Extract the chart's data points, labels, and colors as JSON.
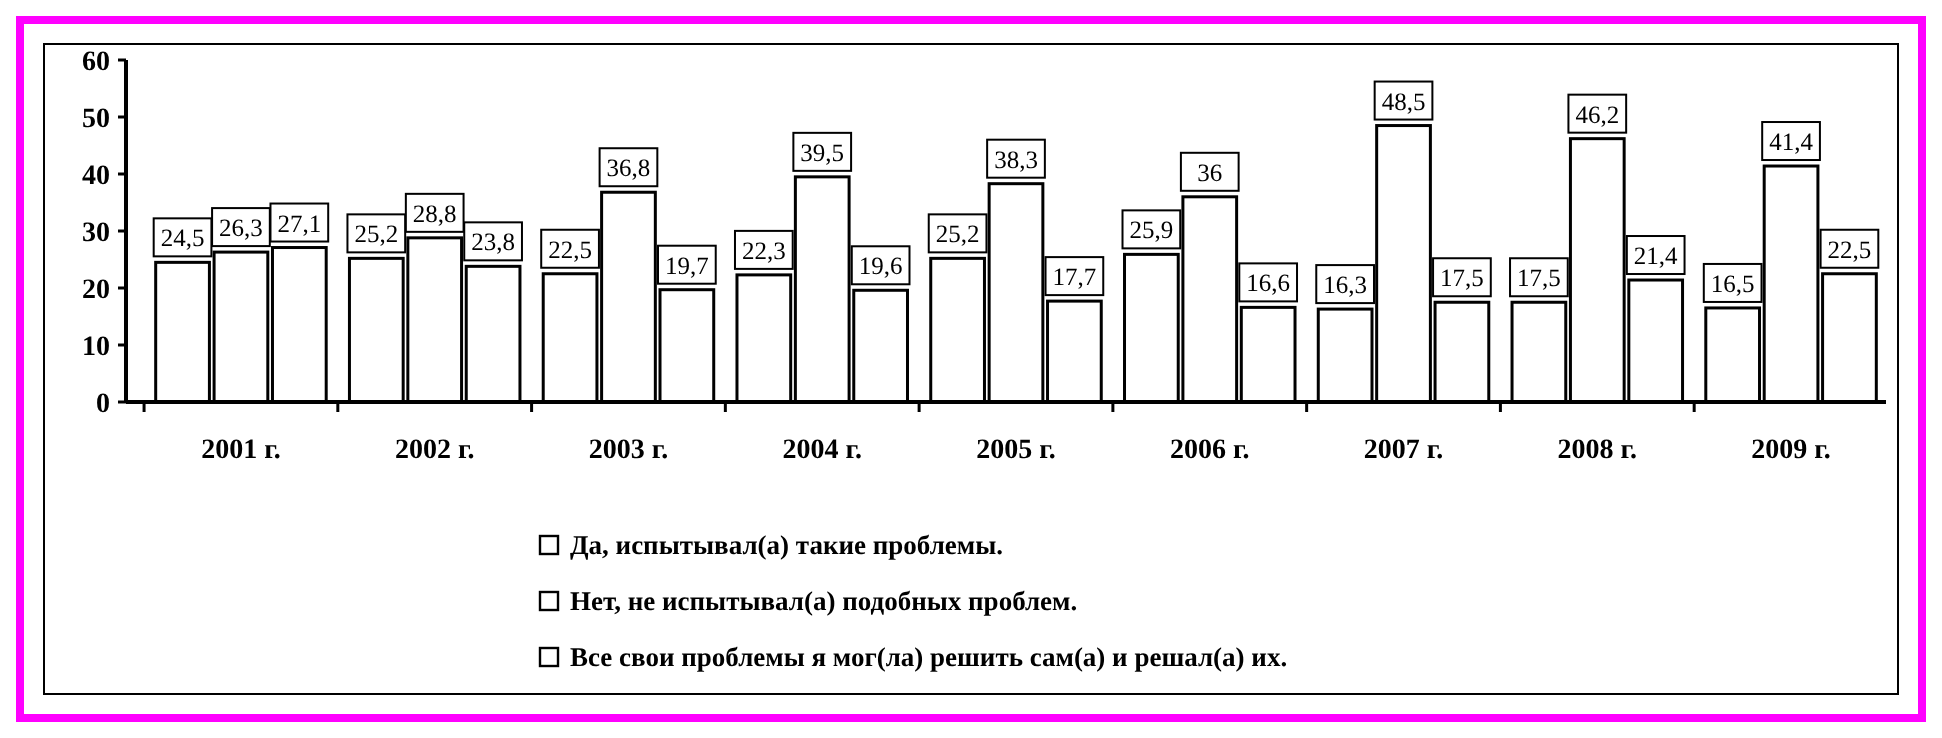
{
  "chart_data": {
    "type": "bar",
    "categories": [
      "2001 г.",
      "2002 г.",
      "2003 г.",
      "2004 г.",
      "2005 г.",
      "2006 г.",
      "2007 г.",
      "2008 г.",
      "2009 г."
    ],
    "series": [
      {
        "name": "Да, испытывал(а) такие проблемы.",
        "color": "#ffffff",
        "values": [
          24.5,
          25.2,
          22.5,
          22.3,
          25.2,
          25.9,
          16.3,
          17.5,
          16.5
        ],
        "value_labels": [
          "24,5",
          "25,2",
          "22,5",
          "22,3",
          "25,2",
          "25,9",
          "16,3",
          "17,5",
          "16,5"
        ]
      },
      {
        "name": "Нет, не испытывал(а) подобных проблем.",
        "color": "#ffffff",
        "values": [
          26.3,
          28.8,
          36.8,
          39.5,
          38.3,
          36,
          48.5,
          46.2,
          41.4
        ],
        "value_labels": [
          "26,3",
          "28,8",
          "36,8",
          "39,5",
          "38,3",
          "36",
          "48,5",
          "46,2",
          "41,4"
        ]
      },
      {
        "name": "Все свои проблемы я мог(ла) решить сам(а) и решал(а) их.",
        "color": "#ffffff",
        "values": [
          27.1,
          23.8,
          19.7,
          19.6,
          17.7,
          16.6,
          17.5,
          21.4,
          22.5
        ],
        "value_labels": [
          "27,1",
          "23,8",
          "19,7",
          "19,6",
          "17,7",
          "16,6",
          "17,5",
          "21,4",
          "22,5"
        ]
      }
    ],
    "ylim": [
      0,
      60
    ],
    "yticks": [
      0,
      10,
      20,
      30,
      40,
      50,
      60
    ],
    "grid": false,
    "legend": "bottom"
  }
}
